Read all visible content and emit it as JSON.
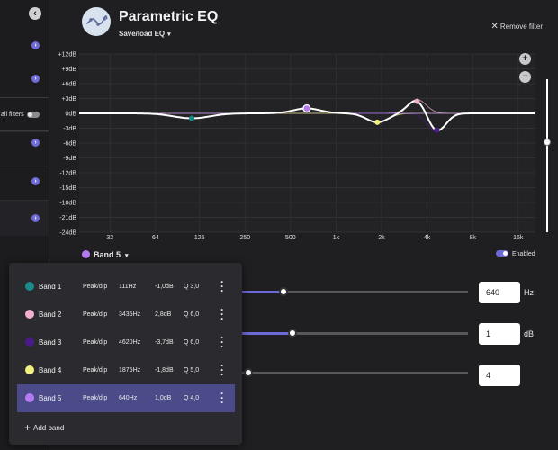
{
  "header": {
    "title": "Parametric EQ",
    "save_load": "Save/load EQ",
    "remove_filter": "Remove filter"
  },
  "sidebar": {
    "all_filters_label": "all filters"
  },
  "graph": {
    "y_labels": [
      "+12dB",
      "+9dB",
      "+6dB",
      "+3dB",
      "0dB",
      "-3dB",
      "-6dB",
      "-9dB",
      "-12dB",
      "-15dB",
      "-18dB",
      "-21dB",
      "-24dB"
    ],
    "x_labels": [
      "32",
      "64",
      "125",
      "250",
      "500",
      "1k",
      "2k",
      "4k",
      "8k",
      "16k"
    ],
    "zoom_in": "+",
    "zoom_out": "−"
  },
  "selected_band": {
    "label": "Band 5",
    "color": "#b57bf0",
    "enabled_label": "Enabled"
  },
  "params": {
    "frequency": {
      "value": "640",
      "unit": "Hz"
    },
    "gain": {
      "value": "1",
      "unit": "dB"
    },
    "q": {
      "value": "4"
    }
  },
  "bands": [
    {
      "name": "Band 1",
      "type": "Peak/dip",
      "freq": "111Hz",
      "gain": "-1,0dB",
      "q": "Q 3,0",
      "color": "#1a8a8a"
    },
    {
      "name": "Band 2",
      "type": "Peak/dip",
      "freq": "3435Hz",
      "gain": "2,8dB",
      "q": "Q 6,0",
      "color": "#f0b0d0"
    },
    {
      "name": "Band 3",
      "type": "Peak/dip",
      "freq": "4620Hz",
      "gain": "-3,7dB",
      "q": "Q 6,0",
      "color": "#4a1a8a"
    },
    {
      "name": "Band 4",
      "type": "Peak/dip",
      "freq": "1875Hz",
      "gain": "-1,8dB",
      "q": "Q 5,0",
      "color": "#f4f080"
    },
    {
      "name": "Band 5",
      "type": "Peak/dip",
      "freq": "640Hz",
      "gain": "1,0dB",
      "q": "Q 4,0",
      "color": "#b57bf0"
    }
  ],
  "add_band": "Add band"
}
